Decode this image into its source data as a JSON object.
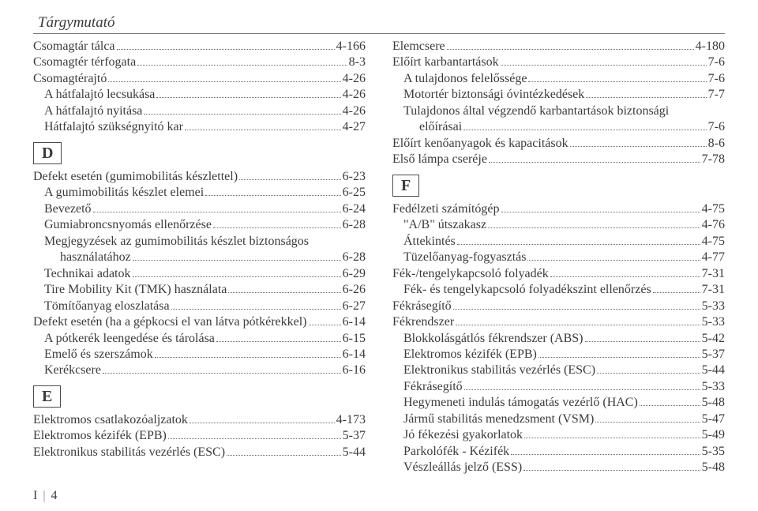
{
  "header": "Tárgymutató",
  "footer": {
    "prefix": "I",
    "page": "4"
  },
  "left": {
    "preEntries": [
      {
        "label": "Csomagtár tálca",
        "page": "4-166",
        "indent": 0
      },
      {
        "label": "Csomagtér térfogata",
        "page": "8-3",
        "indent": 0
      },
      {
        "label": "Csomagtérajtó",
        "page": "4-26",
        "indent": 0
      },
      {
        "label": "A hátfalajtó lecsukása",
        "page": "4-26",
        "indent": 1
      },
      {
        "label": "A hátfalajtó nyitása",
        "page": "4-26",
        "indent": 1
      },
      {
        "label": "Hátfalajtó szükségnyitó kar",
        "page": "4-27",
        "indent": 1
      }
    ],
    "sections": [
      {
        "letter": "D",
        "entries": [
          {
            "label": "Defekt esetén (gumimobilitás készlettel)",
            "page": "6-23",
            "indent": 0
          },
          {
            "label": "A gumimobilitás készlet elemei",
            "page": "6-25",
            "indent": 1
          },
          {
            "label": "Bevezető",
            "page": "6-24",
            "indent": 1
          },
          {
            "label": "Gumiabroncsnyomás ellenőrzése",
            "page": "6-28",
            "indent": 1
          },
          {
            "hang": "Megjegyzések az gumimobilitás készlet biztonságos"
          },
          {
            "label": "használatához",
            "page": "6-28",
            "indent": 2
          },
          {
            "label": "Technikai adatok",
            "page": "6-29",
            "indent": 1
          },
          {
            "label": "Tire Mobility Kit (TMK) használata",
            "page": "6-26",
            "indent": 1
          },
          {
            "label": "Tömítőanyag eloszlatása",
            "page": "6-27",
            "indent": 1
          },
          {
            "label": "Defekt esetén (ha a gépkocsi el van látva pótkérekkel)",
            "page": "6-14",
            "indent": 0
          },
          {
            "label": "A pótkerék leengedése és tárolása",
            "page": "6-15",
            "indent": 1
          },
          {
            "label": "Emelő és szerszámok",
            "page": "6-14",
            "indent": 1
          },
          {
            "label": "Kerékcsere",
            "page": "6-16",
            "indent": 1
          }
        ]
      },
      {
        "letter": "E",
        "entries": [
          {
            "label": "Elektromos csatlakozóaljzatok",
            "page": "4-173",
            "indent": 0
          },
          {
            "label": "Elektromos kézifék (EPB)",
            "page": "5-37",
            "indent": 0
          },
          {
            "label": "Elektronikus stabilitás vezérlés (ESC)",
            "page": "5-44",
            "indent": 0
          }
        ]
      }
    ]
  },
  "right": {
    "preEntries": [
      {
        "label": "Elemcsere",
        "page": "4-180",
        "indent": 0
      },
      {
        "label": "Előírt karbantartások",
        "page": "7-6",
        "indent": 0
      },
      {
        "label": "A tulajdonos felelőssége",
        "page": "7-6",
        "indent": 1
      },
      {
        "label": "Motortér biztonsági óvintézkedések",
        "page": "7-7",
        "indent": 1
      },
      {
        "hang": "Tulajdonos által végzendő karbantartások biztonsági"
      },
      {
        "label": "előírásai",
        "page": "7-6",
        "indent": 2
      },
      {
        "label": "Előírt kenőanyagok és kapacitások",
        "page": "8-6",
        "indent": 0
      },
      {
        "label": "Első lámpa cseréje",
        "page": "7-78",
        "indent": 0
      }
    ],
    "sections": [
      {
        "letter": "F",
        "entries": [
          {
            "label": "Fedélzeti számítógép",
            "page": "4-75",
            "indent": 0
          },
          {
            "label": "\"A/B\" útszakasz",
            "page": "4-76",
            "indent": 1
          },
          {
            "label": "Áttekintés",
            "page": "4-75",
            "indent": 1
          },
          {
            "label": "Tüzelőanyag-fogyasztás",
            "page": "4-77",
            "indent": 1
          },
          {
            "label": "Fék-/tengelykapcsoló folyadék",
            "page": "7-31",
            "indent": 0
          },
          {
            "label": "Fék- és tengelykapcsoló folyadékszint ellenőrzés",
            "page": "7-31",
            "indent": 1
          },
          {
            "label": "Fékrásegítő",
            "page": "5-33",
            "indent": 0
          },
          {
            "label": "Fékrendszer",
            "page": "5-33",
            "indent": 0
          },
          {
            "label": "Blokkolásgátlós fékrendszer (ABS)",
            "page": "5-42",
            "indent": 1
          },
          {
            "label": "Elektromos kézifék (EPB)",
            "page": "5-37",
            "indent": 1
          },
          {
            "label": "Elektronikus stabilitás vezérlés (ESC)",
            "page": "5-44",
            "indent": 1
          },
          {
            "label": "Fékrásegítő",
            "page": "5-33",
            "indent": 1
          },
          {
            "label": "Hegymeneti indulás támogatás vezérlő (HAC)",
            "page": "5-48",
            "indent": 1
          },
          {
            "label": "Jármű stabilitás menedzsment (VSM)",
            "page": "5-47",
            "indent": 1
          },
          {
            "label": "Jó fékezési gyakorlatok",
            "page": "5-49",
            "indent": 1
          },
          {
            "label": "Parkolófék - Kézifék",
            "page": "5-35",
            "indent": 1
          },
          {
            "label": "Vészleállás jelző (ESS)",
            "page": "5-48",
            "indent": 1
          }
        ]
      }
    ]
  }
}
